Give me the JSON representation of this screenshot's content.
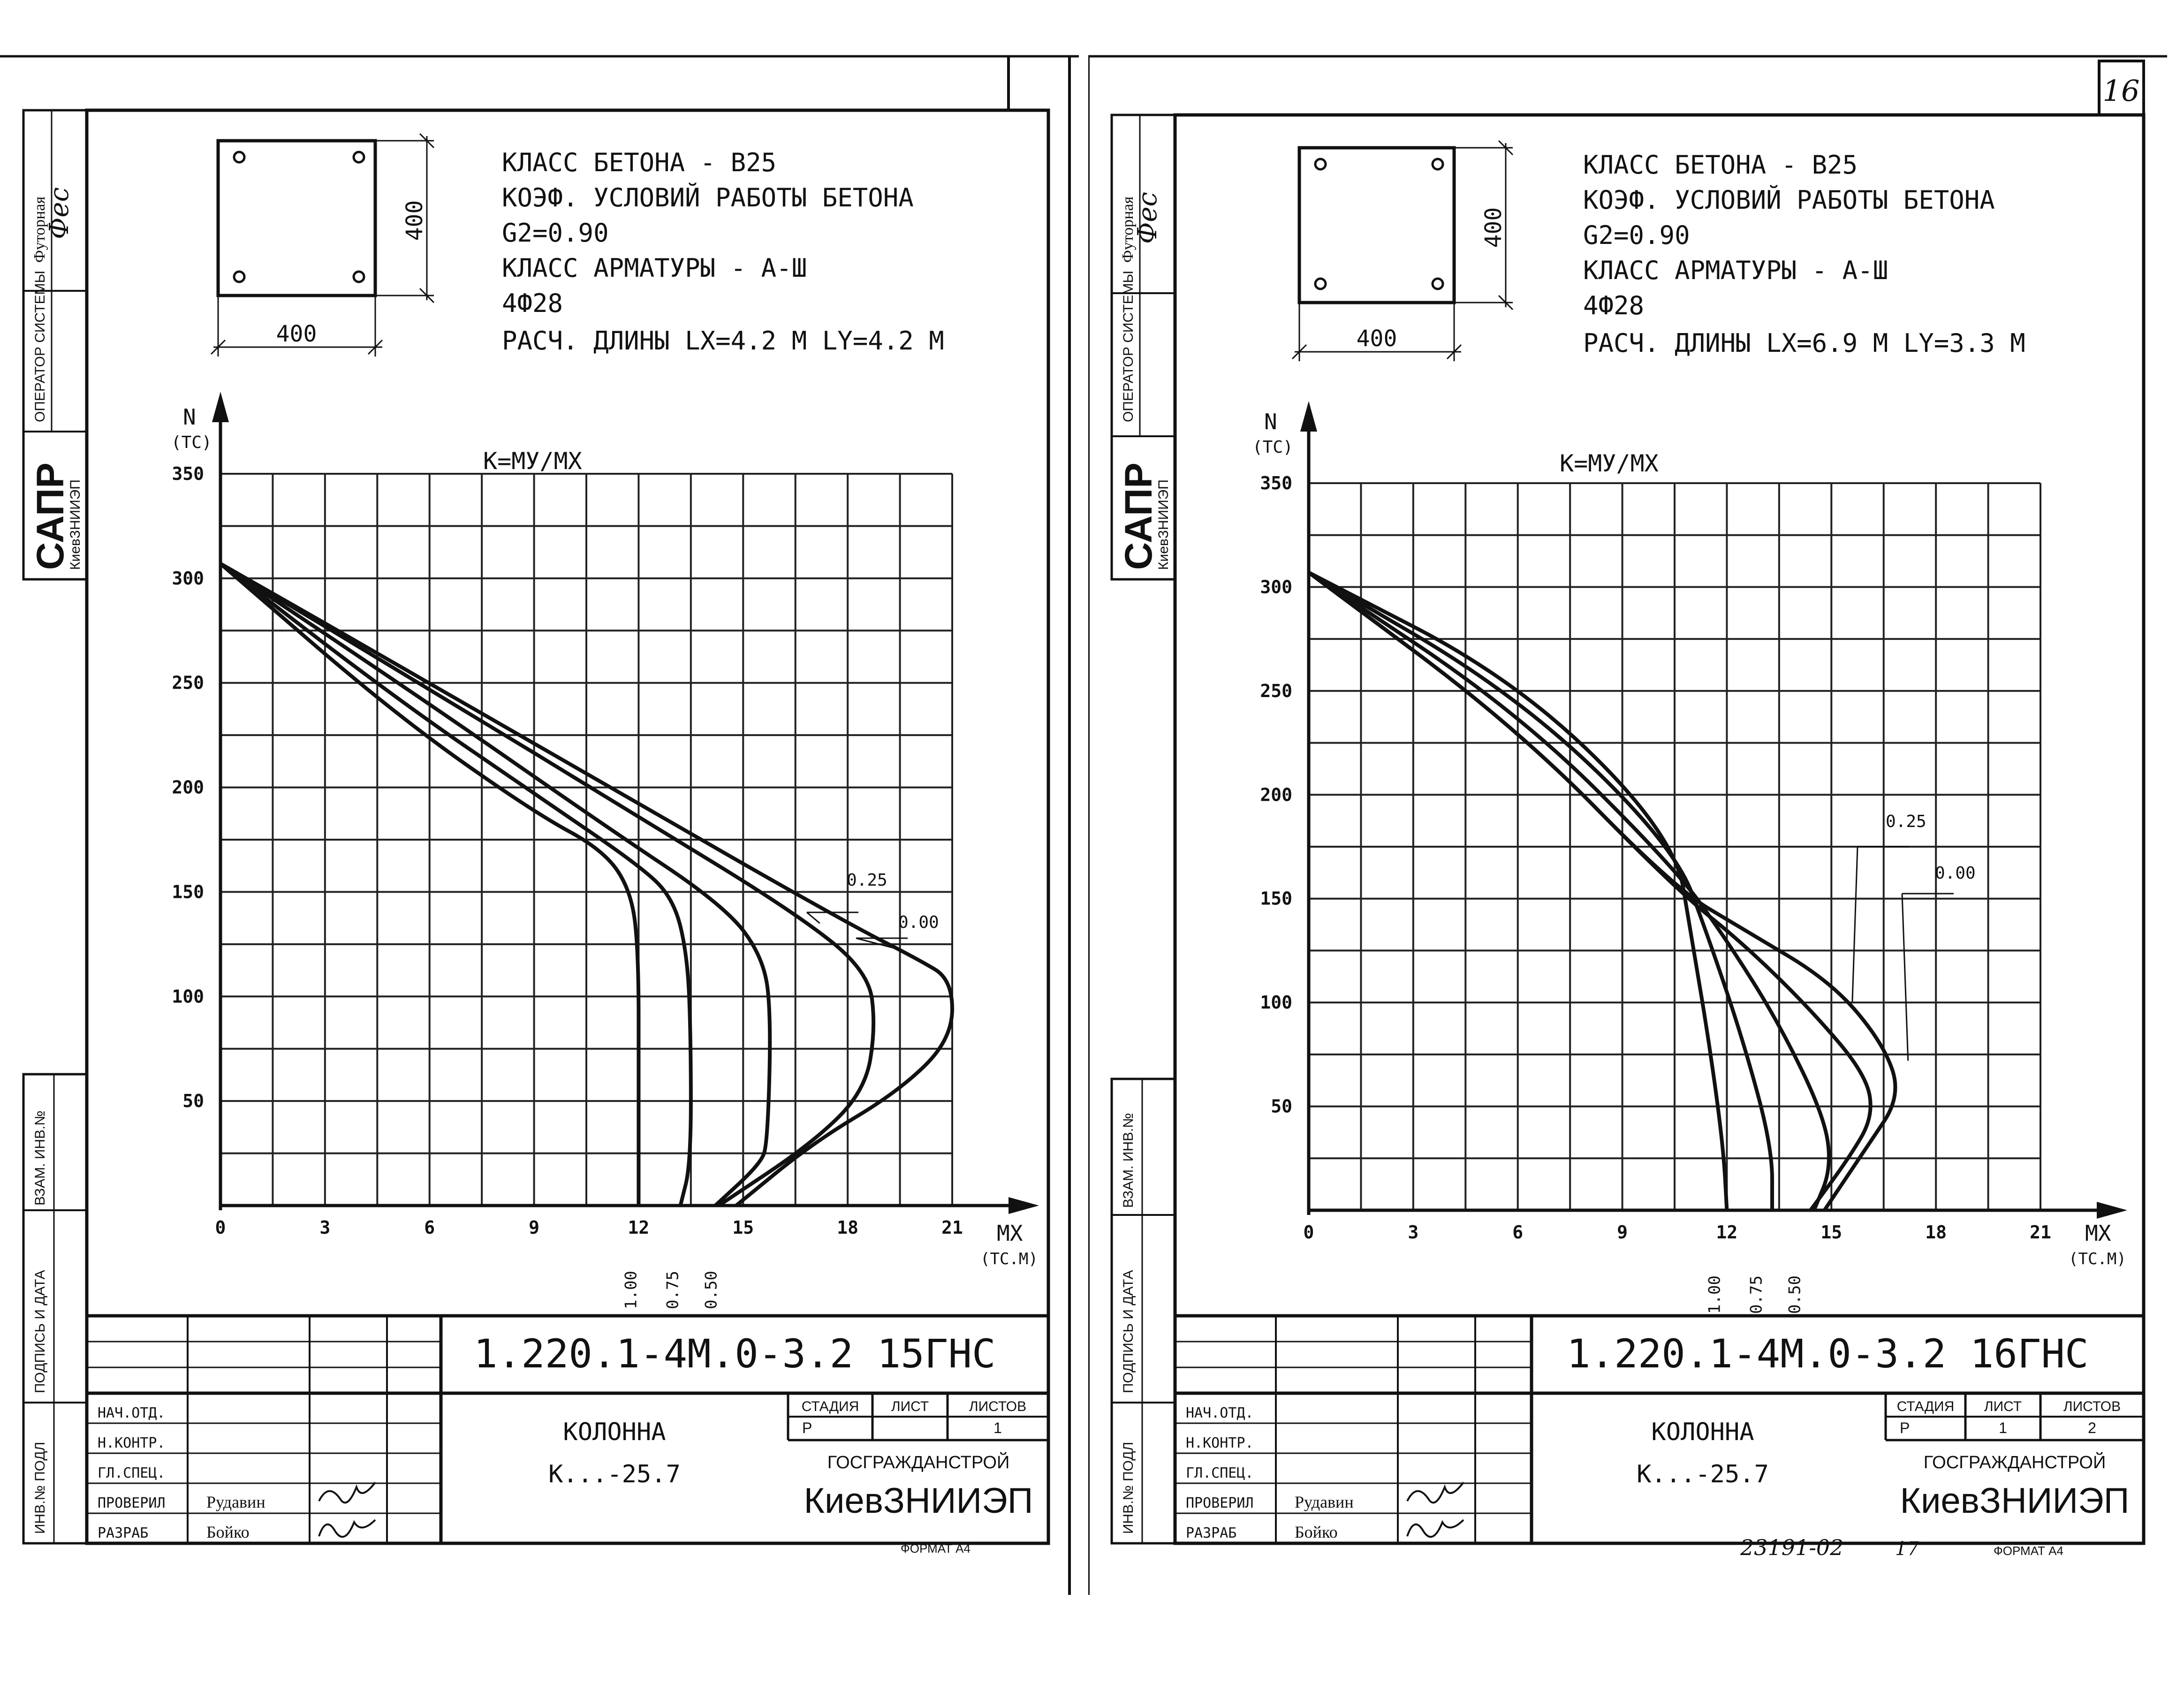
{
  "page_number": "16",
  "footer_handwritten": "23191-02",
  "footer_page": "17",
  "common": {
    "format_label": "ФОРМАТ А4",
    "section_width": "400",
    "section_height": "400",
    "chart_heading": "К=МУ/МХ",
    "y_axis_label": "N",
    "y_axis_unit": "(ТС)",
    "x_axis_label": "МХ",
    "x_axis_unit": "(ТС.М)",
    "left_strip": {
      "trace_stamp": "Футорная",
      "operator": "ОПЕРАТОР СИСТЕМЫ",
      "sapr": "САПР",
      "sapr_sub": "КиевЗНИИЭП",
      "vzam": "ВЗАМ. ИНВ.№",
      "podpis": "ПОДПИСЬ И ДАТА",
      "inv": "ИНВ.№ ПОДЛ"
    },
    "title_block": {
      "roles": [
        "НАЧ.ОТД.",
        "Н.КОНТР.",
        "ГЛ.СПЕЦ.",
        "ПРОВЕРИЛ",
        "РАЗРАБ"
      ],
      "names": [
        "",
        "",
        "",
        "Рудавин",
        "Бойко"
      ],
      "element": "КОЛОННА",
      "mark": "К...-25.7",
      "stage_header": "СТАДИЯ",
      "sheet_header": "ЛИСТ",
      "sheets_header": "ЛИСТОВ",
      "stage": "Р",
      "org_top": "ГОСГРАЖДАНСТРОЙ",
      "org": "КиевЗНИИЭП"
    }
  },
  "sheets": [
    {
      "spec": [
        "КЛАСС БЕТОНА - В25",
        "КОЭФ. УСЛОВИЙ РАБОТЫ БЕТОНА",
        "G2=0.90",
        "КЛАСС АРМАТУРЫ - А-Ш",
        "4Ф28",
        "РАСЧ. ДЛИНЫ  LX=4.2 М  LY=4.2 М"
      ],
      "code": "1.220.1-4М.0-3.2  15ГНС",
      "sheet": "",
      "sheets": "1"
    },
    {
      "spec": [
        "КЛАСС БЕТОНА - В25",
        "КОЭФ. УСЛОВИЙ РАБОТЫ БЕТОНА",
        "G2=0.90",
        "КЛАСС АРМАТУРЫ - А-Ш",
        "4Ф28",
        "РАСЧ. ДЛИНЫ  LX=6.9 М  LY=3.3 М"
      ],
      "code": "1.220.1-4М.0-3.2  16ГНС",
      "sheet": "1",
      "sheets": "2"
    }
  ],
  "chart_data": [
    {
      "type": "line",
      "title": "К=МУ/МХ",
      "xlabel": "МХ (ТС.М)",
      "ylabel": "N (ТС)",
      "xlim": [
        0,
        21
      ],
      "ylim": [
        0,
        350
      ],
      "xticks": [
        "0",
        "3",
        "6",
        "9",
        "12",
        "15",
        "18",
        "21"
      ],
      "yticks": [
        "50",
        "100",
        "150",
        "200",
        "250",
        "300",
        "350"
      ],
      "grid": true,
      "series": [
        {
          "name": "0.00",
          "points": [
            [
              0,
              307
            ],
            [
              6,
              250
            ],
            [
              12,
              192
            ],
            [
              18,
              135
            ],
            [
              20,
              118
            ],
            [
              21,
              108
            ],
            [
              21,
              80
            ],
            [
              19.5,
              55
            ],
            [
              17,
              30
            ],
            [
              14.8,
              0
            ]
          ]
        },
        {
          "name": "0.25",
          "points": [
            [
              0,
              307
            ],
            [
              6,
              247
            ],
            [
              12,
              186
            ],
            [
              16.5,
              140
            ],
            [
              18.6,
              112
            ],
            [
              18.8,
              85
            ],
            [
              18.5,
              55
            ],
            [
              17,
              30
            ],
            [
              14.3,
              0
            ]
          ]
        },
        {
          "name": "0.50",
          "points": [
            [
              0,
              307
            ],
            [
              6,
              240
            ],
            [
              11,
              182
            ],
            [
              14.5,
              143
            ],
            [
              15.6,
              118
            ],
            [
              15.8,
              90
            ],
            [
              15.7,
              30
            ],
            [
              15.5,
              20
            ],
            [
              14.2,
              0
            ]
          ]
        },
        {
          "name": "0.75",
          "points": [
            [
              0,
              307
            ],
            [
              5,
              243
            ],
            [
              9,
              197
            ],
            [
              12,
              163
            ],
            [
              13,
              147
            ],
            [
              13.4,
              120
            ],
            [
              13.5,
              80
            ],
            [
              13.5,
              20
            ],
            [
              13.2,
              0
            ]
          ]
        },
        {
          "name": "1.00",
          "points": [
            [
              0,
              307
            ],
            [
              5,
              235
            ],
            [
              9,
              188
            ],
            [
              11,
              170
            ],
            [
              11.8,
              150
            ],
            [
              12,
              120
            ],
            [
              12,
              60
            ],
            [
              12,
              0
            ]
          ]
        }
      ]
    },
    {
      "type": "line",
      "title": "К=МУ/МХ",
      "xlabel": "МХ (ТС.М)",
      "ylabel": "N (ТС)",
      "xlim": [
        0,
        21
      ],
      "ylim": [
        0,
        350
      ],
      "xticks": [
        "0",
        "3",
        "6",
        "9",
        "12",
        "15",
        "18",
        "21"
      ],
      "yticks": [
        "50",
        "100",
        "150",
        "200",
        "250",
        "300",
        "350"
      ],
      "grid": true,
      "series": [
        {
          "name": "0.00",
          "points": [
            [
              0,
              307
            ],
            [
              6,
              232
            ],
            [
              10.5,
              155
            ],
            [
              12.5,
              135
            ],
            [
              15,
              110
            ],
            [
              16.5,
              80
            ],
            [
              17,
              55
            ],
            [
              16,
              30
            ],
            [
              14.8,
              0
            ]
          ]
        },
        {
          "name": "0.25",
          "points": [
            [
              0,
              307
            ],
            [
              6,
              232
            ],
            [
              10.5,
              155
            ],
            [
              12.5,
              128
            ],
            [
              14.5,
              95
            ],
            [
              16,
              65
            ],
            [
              16.2,
              45
            ],
            [
              15.5,
              25
            ],
            [
              14.4,
              0
            ]
          ]
        },
        {
          "name": "0.50",
          "points": [
            [
              0,
              307
            ],
            [
              6,
              240
            ],
            [
              10.5,
              165
            ],
            [
              12,
              130
            ],
            [
              13.5,
              90
            ],
            [
              14.8,
              45
            ],
            [
              15,
              20
            ],
            [
              14.5,
              0
            ]
          ]
        },
        {
          "name": "0.75",
          "points": [
            [
              0,
              307
            ],
            [
              6,
              248
            ],
            [
              10.5,
              175
            ],
            [
              11.5,
              130
            ],
            [
              12.5,
              80
            ],
            [
              13.3,
              30
            ],
            [
              13.3,
              0
            ]
          ]
        },
        {
          "name": "1.00",
          "points": [
            [
              0,
              307
            ],
            [
              6,
              255
            ],
            [
              10.5,
              180
            ],
            [
              11,
              130
            ],
            [
              11.5,
              80
            ],
            [
              11.9,
              30
            ],
            [
              12,
              0
            ]
          ]
        }
      ]
    }
  ]
}
